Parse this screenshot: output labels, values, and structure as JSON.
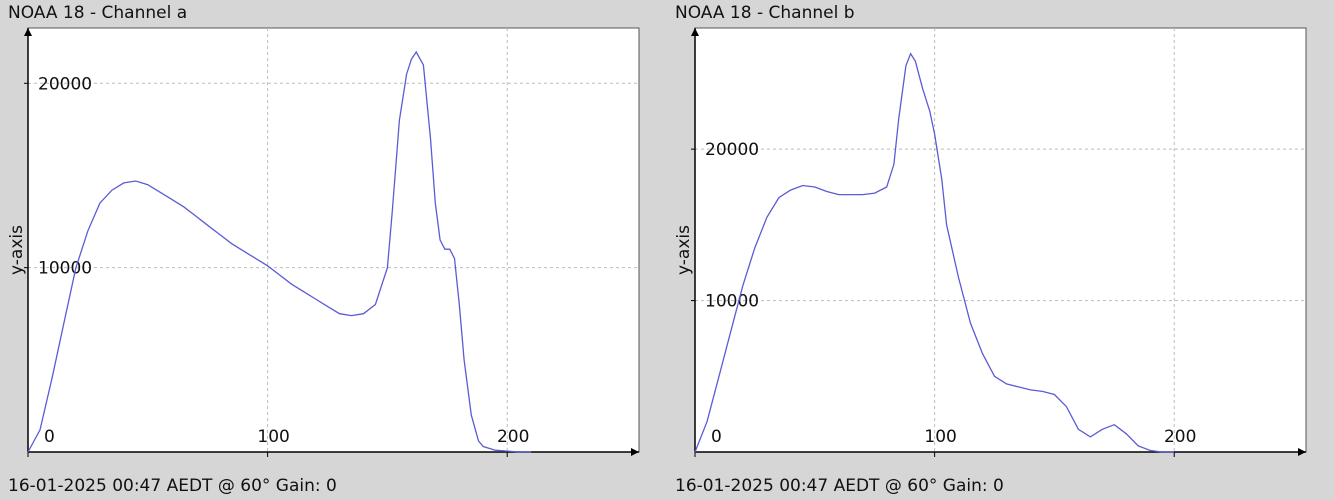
{
  "chart_data": [
    {
      "type": "line",
      "title": "NOAA 18 - Channel a",
      "footer": "16-01-2025 00:47 AEDT @ 60° Gain: 0",
      "xlabel": "",
      "ylabel": "y-axis",
      "xlim": [
        0,
        255
      ],
      "ylim": [
        0,
        23000
      ],
      "xticks": [
        0,
        100,
        200
      ],
      "yticks": [
        10000,
        20000
      ],
      "xtick_labels": [
        "0",
        "100",
        "200"
      ],
      "ytick_labels": [
        "10000",
        "20000"
      ],
      "grid": true,
      "line_color": "#5b5bd6",
      "series": [
        {
          "x": [
            0,
            5,
            10,
            15,
            20,
            25,
            30,
            35,
            40,
            45,
            50,
            55,
            60,
            65,
            70,
            75,
            80,
            85,
            90,
            95,
            100,
            105,
            110,
            115,
            120,
            125,
            130,
            135,
            140,
            145,
            150,
            152,
            155,
            158,
            160,
            162,
            165,
            168,
            170,
            172,
            174,
            176,
            178,
            180,
            182,
            185,
            188,
            190,
            195,
            200,
            205,
            210
          ],
          "values": [
            0,
            1200,
            4000,
            7000,
            10000,
            12000,
            13500,
            14200,
            14600,
            14700,
            14500,
            14100,
            13700,
            13300,
            12800,
            12300,
            11800,
            11300,
            10900,
            10500,
            10100,
            9600,
            9100,
            8700,
            8300,
            7900,
            7500,
            7400,
            7500,
            8000,
            10000,
            13000,
            18000,
            20500,
            21300,
            21700,
            21000,
            17000,
            13500,
            11500,
            11000,
            11000,
            10500,
            8000,
            5000,
            2000,
            600,
            300,
            100,
            50,
            0,
            0
          ]
        }
      ]
    },
    {
      "type": "line",
      "title": "NOAA 18 - Channel b",
      "footer": "16-01-2025 00:47 AEDT @ 60° Gain: 0",
      "xlabel": "",
      "ylabel": "y-axis",
      "xlim": [
        0,
        255
      ],
      "ylim": [
        0,
        28000
      ],
      "xticks": [
        0,
        100,
        200
      ],
      "yticks": [
        10000,
        20000
      ],
      "xtick_labels": [
        "0",
        "100",
        "200"
      ],
      "ytick_labels": [
        "10000",
        "20000"
      ],
      "grid": true,
      "line_color": "#5b5bd6",
      "series": [
        {
          "x": [
            0,
            5,
            10,
            15,
            20,
            25,
            30,
            35,
            40,
            45,
            50,
            55,
            60,
            65,
            70,
            75,
            80,
            83,
            85,
            88,
            90,
            92,
            95,
            98,
            100,
            103,
            105,
            110,
            115,
            120,
            125,
            130,
            135,
            140,
            145,
            150,
            155,
            160,
            165,
            170,
            175,
            180,
            185,
            190,
            195,
            200
          ],
          "values": [
            0,
            2000,
            5000,
            8000,
            11000,
            13500,
            15500,
            16800,
            17300,
            17600,
            17500,
            17200,
            17000,
            17000,
            17000,
            17100,
            17500,
            19000,
            22000,
            25500,
            26300,
            25800,
            24000,
            22500,
            21000,
            18000,
            15000,
            11500,
            8500,
            6500,
            5000,
            4500,
            4300,
            4100,
            4000,
            3800,
            3000,
            1500,
            1000,
            1500,
            1800,
            1200,
            400,
            100,
            0,
            0
          ]
        }
      ]
    }
  ]
}
